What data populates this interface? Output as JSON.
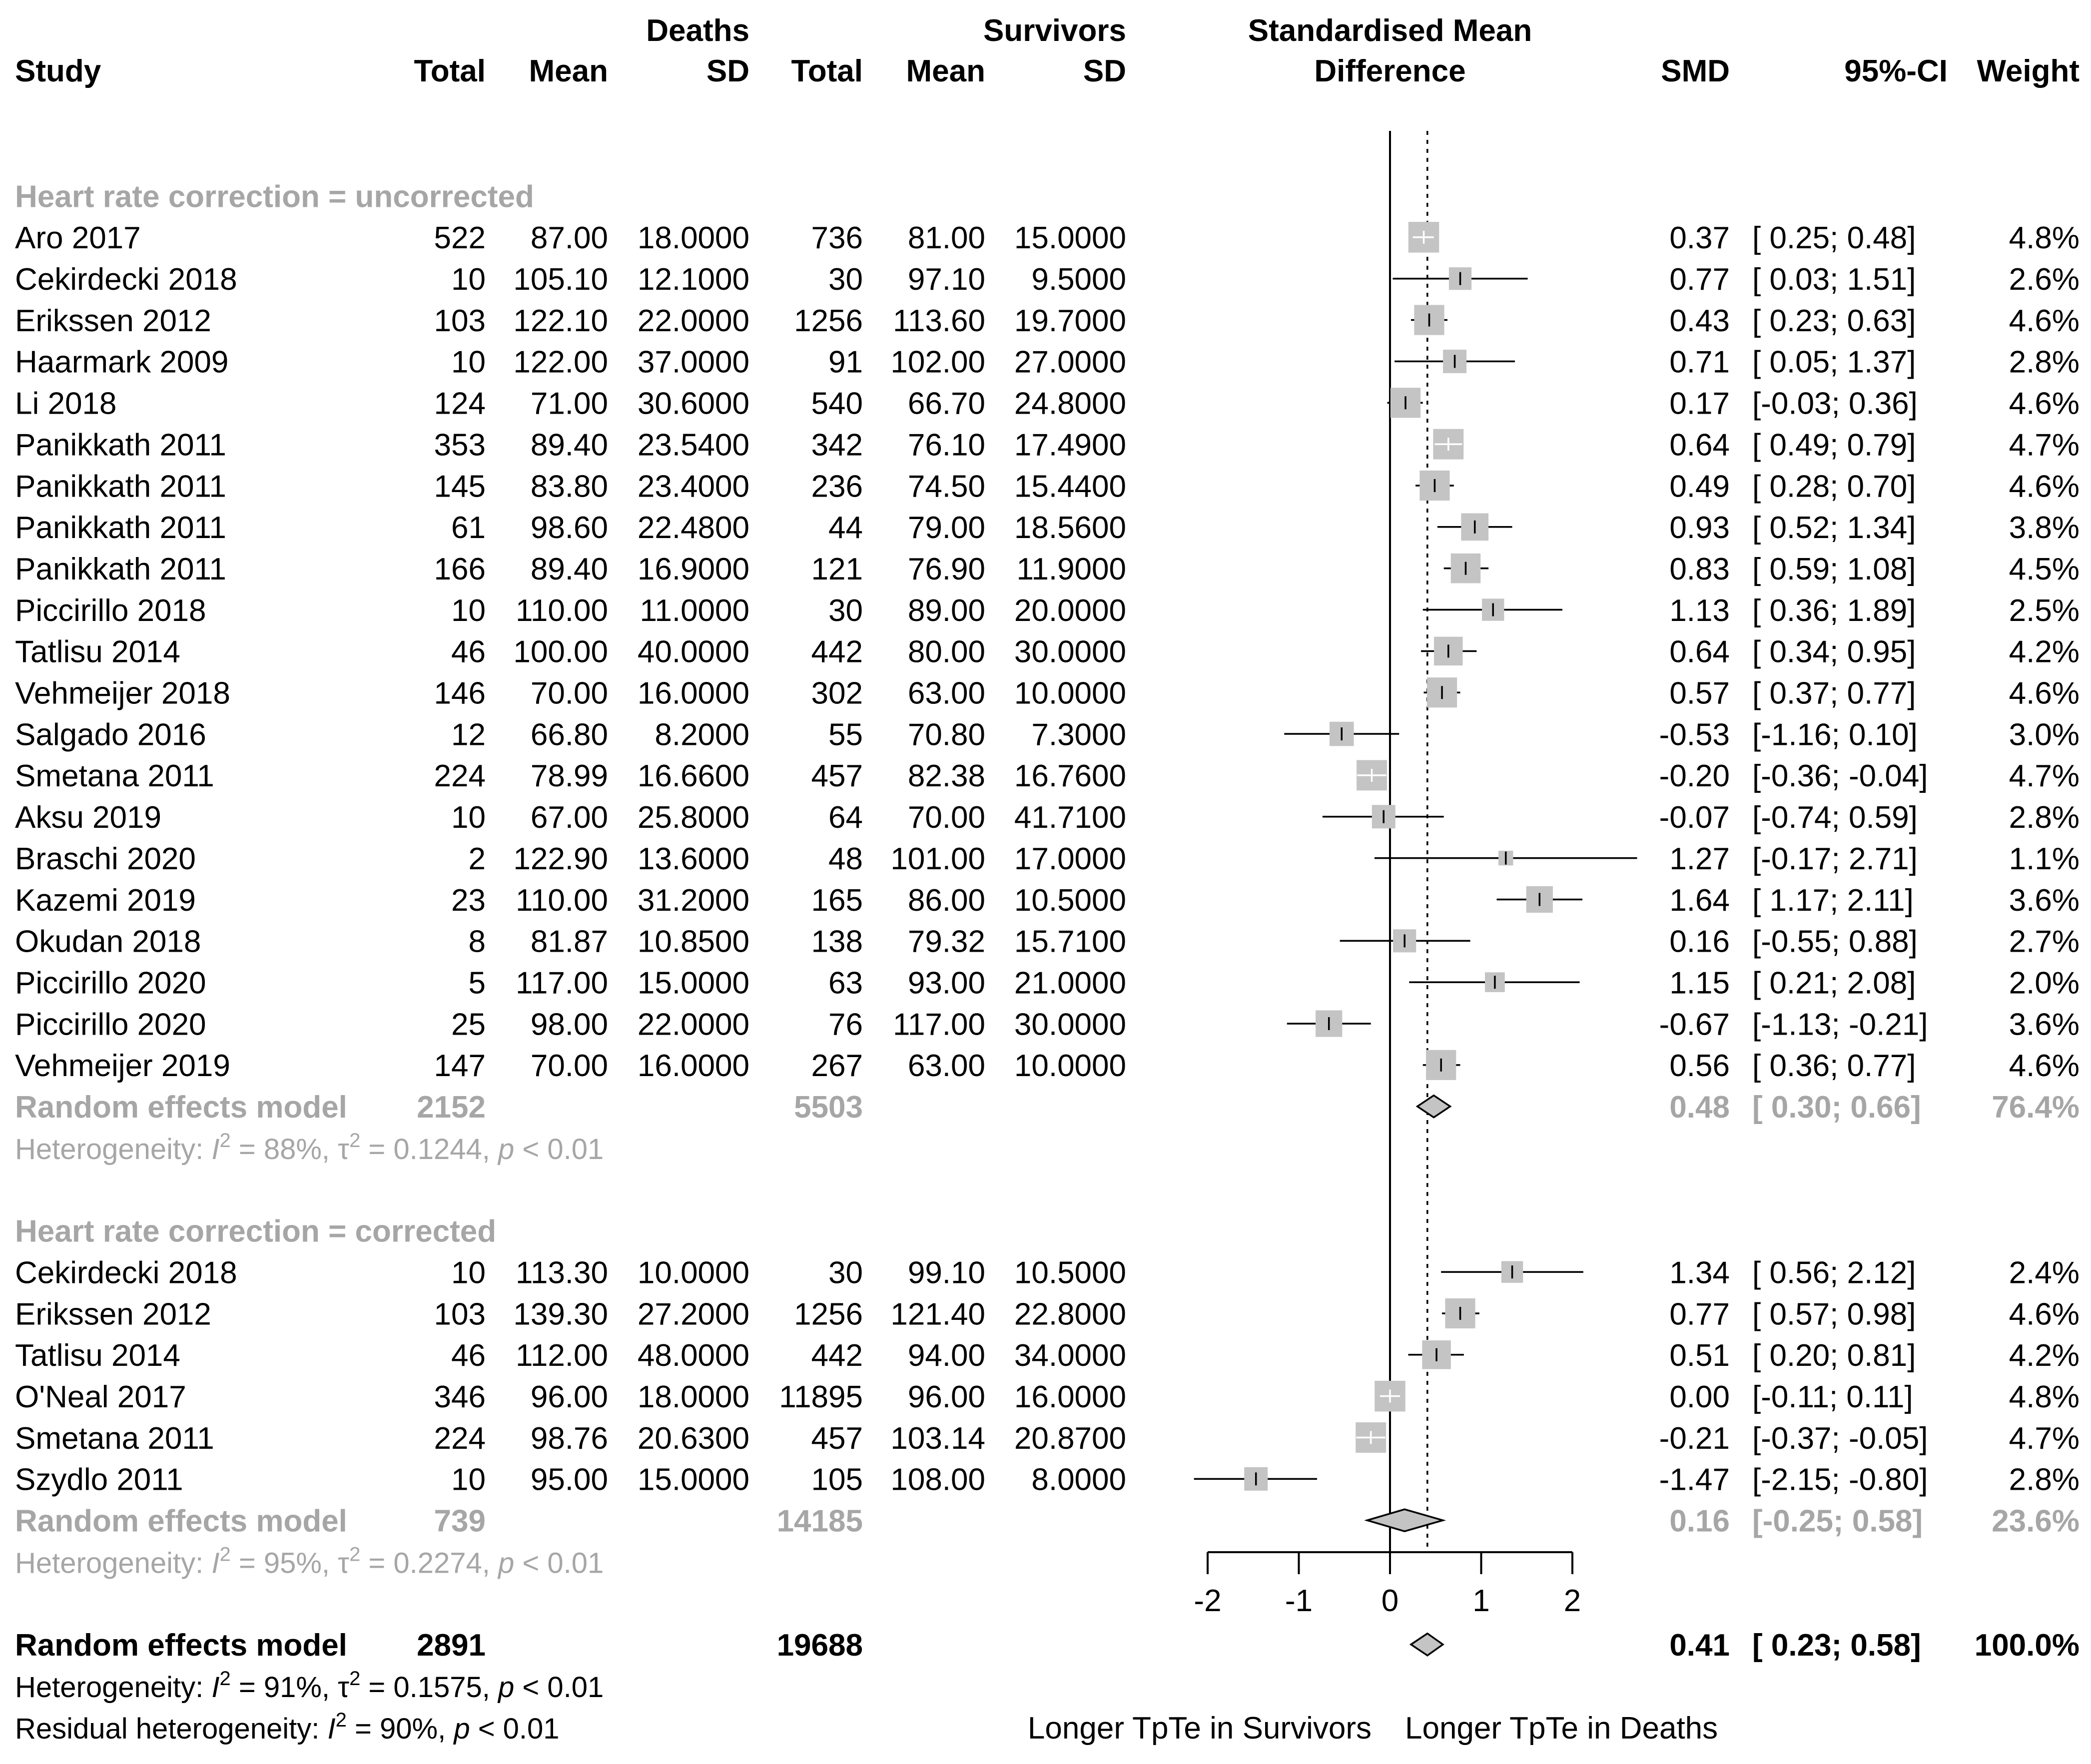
{
  "header": {
    "study": "Study",
    "deaths_group": "Deaths",
    "survivors_group": "Survivors",
    "total": "Total",
    "mean": "Mean",
    "sd": "SD",
    "plot_title_line1": "Standardised Mean",
    "plot_title_line2": "Difference",
    "smd": "SMD",
    "ci": "95%-CI",
    "weight": "Weight"
  },
  "colors": {
    "text": "#000000",
    "subgroup": "#a6a6a6",
    "box": "#c4c4c4",
    "diamond": "#c4c4c4"
  },
  "chart_data": {
    "type": "forest",
    "xlim": [
      -2,
      2
    ],
    "x_ticks": [
      "-2",
      "-1",
      "0",
      "1",
      "2"
    ],
    "x_tick_values": [
      -2,
      -1,
      0,
      1,
      2
    ],
    "null_value": 0,
    "overall_reference": 0.41,
    "xlabel_left": "Longer TpTe in Survivors",
    "xlabel_right": "Longer TpTe in Deaths",
    "subgroups": [
      {
        "label": "Heart rate correction = uncorrected",
        "studies": [
          {
            "study": "Aro 2017",
            "d_total": "522",
            "d_mean": "87.00",
            "d_sd": "18.0000",
            "s_total": "736",
            "s_mean": "81.00",
            "s_sd": "15.0000",
            "smd": 0.37,
            "lo": 0.25,
            "hi": 0.48,
            "weight": 4.8,
            "smd_text": "0.37",
            "ci_text": "[ 0.25;  0.48]",
            "weight_text": "4.8%"
          },
          {
            "study": "Cekirdecki 2018",
            "d_total": "10",
            "d_mean": "105.10",
            "d_sd": "12.1000",
            "s_total": "30",
            "s_mean": "97.10",
            "s_sd": "9.5000",
            "smd": 0.77,
            "lo": 0.03,
            "hi": 1.51,
            "weight": 2.6,
            "smd_text": "0.77",
            "ci_text": "[ 0.03;  1.51]",
            "weight_text": "2.6%"
          },
          {
            "study": "Erikssen 2012",
            "d_total": "103",
            "d_mean": "122.10",
            "d_sd": "22.0000",
            "s_total": "1256",
            "s_mean": "113.60",
            "s_sd": "19.7000",
            "smd": 0.43,
            "lo": 0.23,
            "hi": 0.63,
            "weight": 4.6,
            "smd_text": "0.43",
            "ci_text": "[ 0.23;  0.63]",
            "weight_text": "4.6%"
          },
          {
            "study": "Haarmark 2009",
            "d_total": "10",
            "d_mean": "122.00",
            "d_sd": "37.0000",
            "s_total": "91",
            "s_mean": "102.00",
            "s_sd": "27.0000",
            "smd": 0.71,
            "lo": 0.05,
            "hi": 1.37,
            "weight": 2.8,
            "smd_text": "0.71",
            "ci_text": "[ 0.05;  1.37]",
            "weight_text": "2.8%"
          },
          {
            "study": "Li 2018",
            "d_total": "124",
            "d_mean": "71.00",
            "d_sd": "30.6000",
            "s_total": "540",
            "s_mean": "66.70",
            "s_sd": "24.8000",
            "smd": 0.17,
            "lo": -0.03,
            "hi": 0.36,
            "weight": 4.6,
            "smd_text": "0.17",
            "ci_text": "[-0.03;  0.36]",
            "weight_text": "4.6%"
          },
          {
            "study": "Panikkath 2011",
            "d_total": "353",
            "d_mean": "89.40",
            "d_sd": "23.5400",
            "s_total": "342",
            "s_mean": "76.10",
            "s_sd": "17.4900",
            "smd": 0.64,
            "lo": 0.49,
            "hi": 0.79,
            "weight": 4.7,
            "smd_text": "0.64",
            "ci_text": "[ 0.49;  0.79]",
            "weight_text": "4.7%"
          },
          {
            "study": "Panikkath 2011",
            "d_total": "145",
            "d_mean": "83.80",
            "d_sd": "23.4000",
            "s_total": "236",
            "s_mean": "74.50",
            "s_sd": "15.4400",
            "smd": 0.49,
            "lo": 0.28,
            "hi": 0.7,
            "weight": 4.6,
            "smd_text": "0.49",
            "ci_text": "[ 0.28;  0.70]",
            "weight_text": "4.6%"
          },
          {
            "study": "Panikkath 2011",
            "d_total": "61",
            "d_mean": "98.60",
            "d_sd": "22.4800",
            "s_total": "44",
            "s_mean": "79.00",
            "s_sd": "18.5600",
            "smd": 0.93,
            "lo": 0.52,
            "hi": 1.34,
            "weight": 3.8,
            "smd_text": "0.93",
            "ci_text": "[ 0.52;  1.34]",
            "weight_text": "3.8%"
          },
          {
            "study": "Panikkath 2011",
            "d_total": "166",
            "d_mean": "89.40",
            "d_sd": "16.9000",
            "s_total": "121",
            "s_mean": "76.90",
            "s_sd": "11.9000",
            "smd": 0.83,
            "lo": 0.59,
            "hi": 1.08,
            "weight": 4.5,
            "smd_text": "0.83",
            "ci_text": "[ 0.59;  1.08]",
            "weight_text": "4.5%"
          },
          {
            "study": "Piccirillo 2018",
            "d_total": "10",
            "d_mean": "110.00",
            "d_sd": "11.0000",
            "s_total": "30",
            "s_mean": "89.00",
            "s_sd": "20.0000",
            "smd": 1.13,
            "lo": 0.36,
            "hi": 1.89,
            "weight": 2.5,
            "smd_text": "1.13",
            "ci_text": "[ 0.36;  1.89]",
            "weight_text": "2.5%"
          },
          {
            "study": "Tatlisu 2014",
            "d_total": "46",
            "d_mean": "100.00",
            "d_sd": "40.0000",
            "s_total": "442",
            "s_mean": "80.00",
            "s_sd": "30.0000",
            "smd": 0.64,
            "lo": 0.34,
            "hi": 0.95,
            "weight": 4.2,
            "smd_text": "0.64",
            "ci_text": "[ 0.34;  0.95]",
            "weight_text": "4.2%"
          },
          {
            "study": "Vehmeijer 2018",
            "d_total": "146",
            "d_mean": "70.00",
            "d_sd": "16.0000",
            "s_total": "302",
            "s_mean": "63.00",
            "s_sd": "10.0000",
            "smd": 0.57,
            "lo": 0.37,
            "hi": 0.77,
            "weight": 4.6,
            "smd_text": "0.57",
            "ci_text": "[ 0.37;  0.77]",
            "weight_text": "4.6%"
          },
          {
            "study": "Salgado 2016",
            "d_total": "12",
            "d_mean": "66.80",
            "d_sd": "8.2000",
            "s_total": "55",
            "s_mean": "70.80",
            "s_sd": "7.3000",
            "smd": -0.53,
            "lo": -1.16,
            "hi": 0.1,
            "weight": 3.0,
            "smd_text": "-0.53",
            "ci_text": "[-1.16;  0.10]",
            "weight_text": "3.0%"
          },
          {
            "study": "Smetana 2011",
            "d_total": "224",
            "d_mean": "78.99",
            "d_sd": "16.6600",
            "s_total": "457",
            "s_mean": "82.38",
            "s_sd": "16.7600",
            "smd": -0.2,
            "lo": -0.36,
            "hi": -0.04,
            "weight": 4.7,
            "smd_text": "-0.20",
            "ci_text": "[-0.36; -0.04]",
            "weight_text": "4.7%"
          },
          {
            "study": "Aksu 2019",
            "d_total": "10",
            "d_mean": "67.00",
            "d_sd": "25.8000",
            "s_total": "64",
            "s_mean": "70.00",
            "s_sd": "41.7100",
            "smd": -0.07,
            "lo": -0.74,
            "hi": 0.59,
            "weight": 2.8,
            "smd_text": "-0.07",
            "ci_text": "[-0.74;  0.59]",
            "weight_text": "2.8%"
          },
          {
            "study": "Braschi 2020",
            "d_total": "2",
            "d_mean": "122.90",
            "d_sd": "13.6000",
            "s_total": "48",
            "s_mean": "101.00",
            "s_sd": "17.0000",
            "smd": 1.27,
            "lo": -0.17,
            "hi": 2.71,
            "weight": 1.1,
            "smd_text": "1.27",
            "ci_text": "[-0.17;  2.71]",
            "weight_text": "1.1%"
          },
          {
            "study": "Kazemi 2019",
            "d_total": "23",
            "d_mean": "110.00",
            "d_sd": "31.2000",
            "s_total": "165",
            "s_mean": "86.00",
            "s_sd": "10.5000",
            "smd": 1.64,
            "lo": 1.17,
            "hi": 2.11,
            "weight": 3.6,
            "smd_text": "1.64",
            "ci_text": "[ 1.17;  2.11]",
            "weight_text": "3.6%"
          },
          {
            "study": "Okudan 2018",
            "d_total": "8",
            "d_mean": "81.87",
            "d_sd": "10.8500",
            "s_total": "138",
            "s_mean": "79.32",
            "s_sd": "15.7100",
            "smd": 0.16,
            "lo": -0.55,
            "hi": 0.88,
            "weight": 2.7,
            "smd_text": "0.16",
            "ci_text": "[-0.55;  0.88]",
            "weight_text": "2.7%"
          },
          {
            "study": "Piccirillo 2020",
            "d_total": "5",
            "d_mean": "117.00",
            "d_sd": "15.0000",
            "s_total": "63",
            "s_mean": "93.00",
            "s_sd": "21.0000",
            "smd": 1.15,
            "lo": 0.21,
            "hi": 2.08,
            "weight": 2.0,
            "smd_text": "1.15",
            "ci_text": "[ 0.21;  2.08]",
            "weight_text": "2.0%"
          },
          {
            "study": "Piccirillo 2020",
            "d_total": "25",
            "d_mean": "98.00",
            "d_sd": "22.0000",
            "s_total": "76",
            "s_mean": "117.00",
            "s_sd": "30.0000",
            "smd": -0.67,
            "lo": -1.13,
            "hi": -0.21,
            "weight": 3.6,
            "smd_text": "-0.67",
            "ci_text": "[-1.13; -0.21]",
            "weight_text": "3.6%"
          },
          {
            "study": "Vehmeijer 2019",
            "d_total": "147",
            "d_mean": "70.00",
            "d_sd": "16.0000",
            "s_total": "267",
            "s_mean": "63.00",
            "s_sd": "10.0000",
            "smd": 0.56,
            "lo": 0.36,
            "hi": 0.77,
            "weight": 4.6,
            "smd_text": "0.56",
            "ci_text": "[ 0.36;  0.77]",
            "weight_text": "4.6%"
          }
        ],
        "pooled": {
          "label": "Random effects model",
          "d_total": "2152",
          "s_total": "5503",
          "smd": 0.48,
          "lo": 0.3,
          "hi": 0.66,
          "smd_text": "0.48",
          "ci_text": "[ 0.30;  0.66]",
          "weight_text": "76.4%"
        },
        "heterogeneity": {
          "prefix": "Heterogeneity: ",
          "i2_symbol": "I",
          "sup": "2",
          "i2": " = 88%, ",
          "tau": "τ",
          "tau_text": " = 0.1244, ",
          "p_symbol": "p",
          "p_text": " < 0.01"
        }
      },
      {
        "label": "Heart rate correction = corrected",
        "studies": [
          {
            "study": "Cekirdecki 2018",
            "d_total": "10",
            "d_mean": "113.30",
            "d_sd": "10.0000",
            "s_total": "30",
            "s_mean": "99.10",
            "s_sd": "10.5000",
            "smd": 1.34,
            "lo": 0.56,
            "hi": 2.12,
            "weight": 2.4,
            "smd_text": "1.34",
            "ci_text": "[ 0.56;  2.12]",
            "weight_text": "2.4%"
          },
          {
            "study": "Erikssen 2012",
            "d_total": "103",
            "d_mean": "139.30",
            "d_sd": "27.2000",
            "s_total": "1256",
            "s_mean": "121.40",
            "s_sd": "22.8000",
            "smd": 0.77,
            "lo": 0.57,
            "hi": 0.98,
            "weight": 4.6,
            "smd_text": "0.77",
            "ci_text": "[ 0.57;  0.98]",
            "weight_text": "4.6%"
          },
          {
            "study": "Tatlisu 2014",
            "d_total": "46",
            "d_mean": "112.00",
            "d_sd": "48.0000",
            "s_total": "442",
            "s_mean": "94.00",
            "s_sd": "34.0000",
            "smd": 0.51,
            "lo": 0.2,
            "hi": 0.81,
            "weight": 4.2,
            "smd_text": "0.51",
            "ci_text": "[ 0.20;  0.81]",
            "weight_text": "4.2%"
          },
          {
            "study": "O'Neal 2017",
            "d_total": "346",
            "d_mean": "96.00",
            "d_sd": "18.0000",
            "s_total": "11895",
            "s_mean": "96.00",
            "s_sd": "16.0000",
            "smd": 0.0,
            "lo": -0.11,
            "hi": 0.11,
            "weight": 4.8,
            "smd_text": "0.00",
            "ci_text": "[-0.11;  0.11]",
            "weight_text": "4.8%"
          },
          {
            "study": "Smetana 2011",
            "d_total": "224",
            "d_mean": "98.76",
            "d_sd": "20.6300",
            "s_total": "457",
            "s_mean": "103.14",
            "s_sd": "20.8700",
            "smd": -0.21,
            "lo": -0.37,
            "hi": -0.05,
            "weight": 4.7,
            "smd_text": "-0.21",
            "ci_text": "[-0.37; -0.05]",
            "weight_text": "4.7%"
          },
          {
            "study": "Szydlo 2011",
            "d_total": "10",
            "d_mean": "95.00",
            "d_sd": "15.0000",
            "s_total": "105",
            "s_mean": "108.00",
            "s_sd": "8.0000",
            "smd": -1.47,
            "lo": -2.15,
            "hi": -0.8,
            "weight": 2.8,
            "smd_text": "-1.47",
            "ci_text": "[-2.15; -0.80]",
            "weight_text": "2.8%"
          }
        ],
        "pooled": {
          "label": "Random effects model",
          "d_total": "739",
          "s_total": "14185",
          "smd": 0.16,
          "lo": -0.25,
          "hi": 0.58,
          "smd_text": "0.16",
          "ci_text": "[-0.25;  0.58]",
          "weight_text": "23.6%"
        },
        "heterogeneity": {
          "prefix": "Heterogeneity: ",
          "i2_symbol": "I",
          "sup": "2",
          "i2": " = 95%, ",
          "tau": "τ",
          "tau_text": " = 0.2274, ",
          "p_symbol": "p",
          "p_text": " < 0.01"
        }
      }
    ],
    "overall": {
      "label": "Random effects model",
      "d_total": "2891",
      "s_total": "19688",
      "smd": 0.41,
      "lo": 0.23,
      "hi": 0.58,
      "smd_text": "0.41",
      "ci_text": "[ 0.23;  0.58]",
      "weight_text": "100.0%",
      "heterogeneity": {
        "prefix": "Heterogeneity: ",
        "i2_symbol": "I",
        "sup": "2",
        "i2": " = 91%, ",
        "tau": "τ",
        "tau_text": " = 0.1575, ",
        "p_symbol": "p",
        "p_text": " < 0.01"
      },
      "residual": {
        "prefix": "Residual heterogeneity: ",
        "i2_symbol": "I",
        "sup": "2",
        "i2": " = 90%, ",
        "p_symbol": "p",
        "p_text": " < 0.01"
      }
    }
  }
}
